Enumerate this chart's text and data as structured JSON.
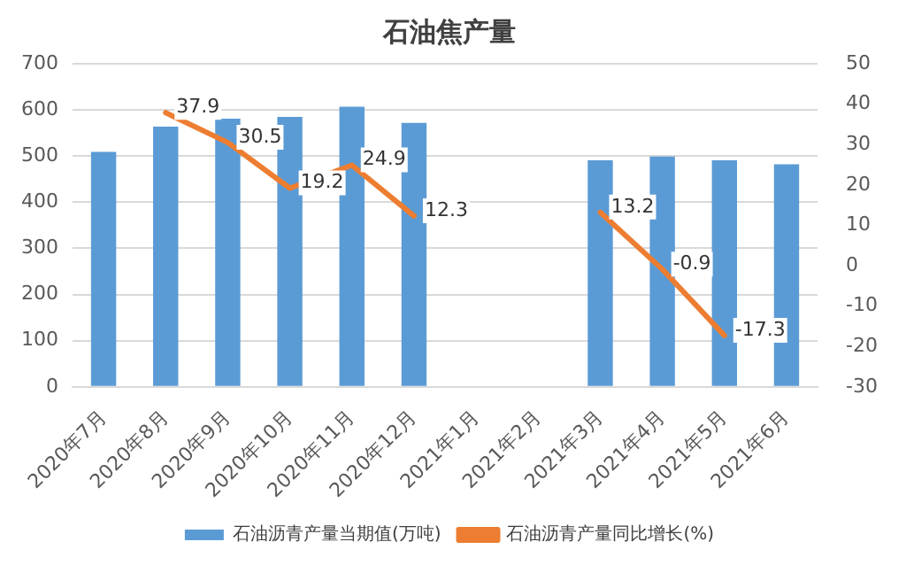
{
  "chart_data": {
    "type": "bar",
    "title": "石油焦产量",
    "categories": [
      "2020年7月",
      "2020年8月",
      "2020年9月",
      "2020年10月",
      "2020年11月",
      "2020年12月",
      "2021年1月",
      "2021年2月",
      "2021年3月",
      "2021年4月",
      "2021年5月",
      "2021年6月"
    ],
    "series": [
      {
        "name": "石油沥青产量当期值(万吨)",
        "color": "#5b9bd5",
        "values": [
          509,
          564,
          581,
          585,
          607,
          572,
          null,
          null,
          491,
          499,
          491,
          482
        ]
      },
      {
        "name": "石油沥青产量同比增长(%)",
        "type": "line",
        "axis": "y2",
        "color": "#ed7d31",
        "values": [
          null,
          37.9,
          30.5,
          19.2,
          24.9,
          12.3,
          null,
          null,
          13.2,
          -0.9,
          -17.3,
          null
        ],
        "value_labels": [
          null,
          "37.9",
          "30.5",
          "19.2",
          "24.9",
          "12.3",
          null,
          null,
          "13.2",
          "-0.9",
          "-17.3",
          null
        ]
      }
    ],
    "ylim": [
      0,
      700
    ],
    "yticks": [
      0,
      100,
      200,
      300,
      400,
      500,
      600,
      700
    ],
    "y2lim": [
      -30,
      50
    ],
    "y2ticks": [
      -30,
      -20,
      -10,
      0,
      10,
      20,
      30,
      40,
      50
    ],
    "grid": "y",
    "legend": "bottom",
    "marker": "none"
  }
}
